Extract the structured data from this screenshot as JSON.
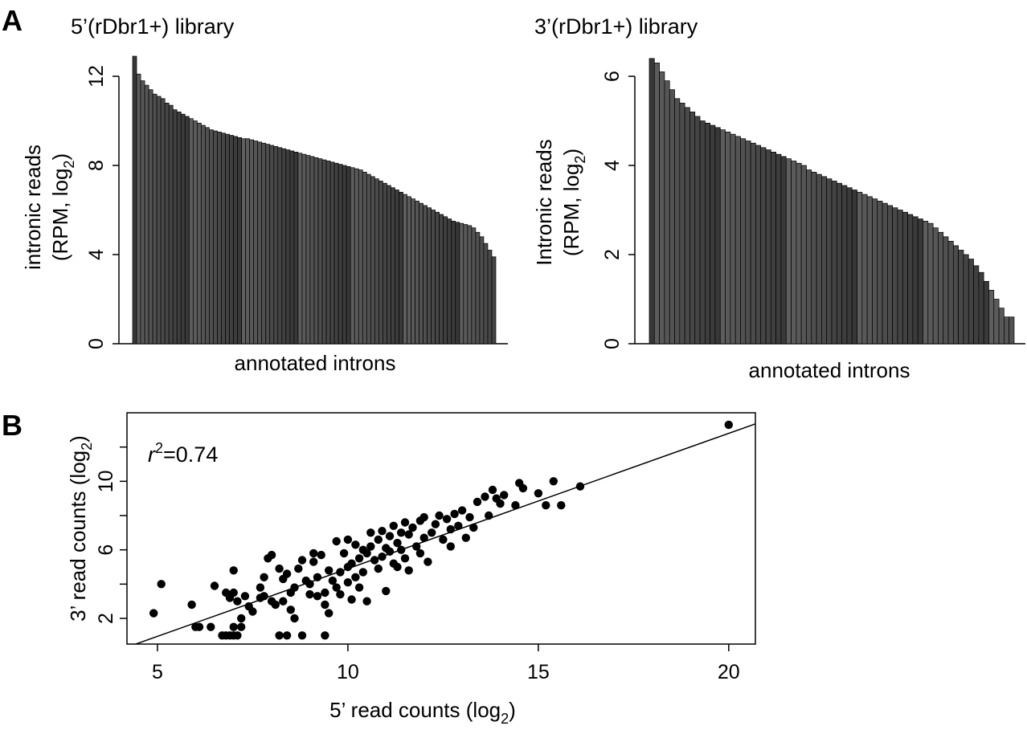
{
  "figure": {
    "panel_a_letter": "A",
    "panel_b_letter": "B"
  },
  "chart_data": [
    {
      "type": "bar",
      "panel": "A",
      "title": "5’(rDbr1+) library",
      "xlabel": "annotated introns",
      "ylabel_line1": "intronic reads",
      "ylabel_line2_prefix": "(RPM, log",
      "ylabel_line2_sub": "2",
      "ylabel_line2_suffix": ")",
      "ylim": [
        0,
        12
      ],
      "yticks": [
        0,
        4,
        8,
        12
      ],
      "ytick_labels": [
        "0",
        "4",
        "8",
        "12"
      ],
      "sorted_descending": true,
      "values": [
        12.9,
        12.1,
        11.8,
        11.6,
        11.4,
        11.2,
        11.1,
        11.0,
        10.8,
        10.7,
        10.5,
        10.4,
        10.3,
        10.2,
        10.1,
        10.0,
        9.9,
        9.8,
        9.7,
        9.6,
        9.55,
        9.5,
        9.45,
        9.4,
        9.35,
        9.3,
        9.25,
        9.2,
        9.2,
        9.15,
        9.1,
        9.05,
        9.0,
        8.95,
        8.9,
        8.85,
        8.8,
        8.75,
        8.7,
        8.65,
        8.6,
        8.55,
        8.5,
        8.45,
        8.4,
        8.35,
        8.3,
        8.25,
        8.2,
        8.15,
        8.1,
        8.05,
        8.0,
        7.95,
        7.9,
        7.85,
        7.8,
        7.7,
        7.6,
        7.5,
        7.4,
        7.3,
        7.2,
        7.1,
        7.0,
        6.9,
        6.8,
        6.7,
        6.6,
        6.5,
        6.4,
        6.3,
        6.2,
        6.1,
        6.0,
        5.9,
        5.8,
        5.7,
        5.6,
        5.5,
        5.45,
        5.4,
        5.35,
        5.3,
        5.2,
        5.0,
        4.8,
        4.5,
        4.2,
        3.9
      ]
    },
    {
      "type": "bar",
      "panel": "A",
      "title": "3’(rDbr1+) library",
      "xlabel": "annotated introns",
      "ylabel_line1": "Intronic reads",
      "ylabel_line2_prefix": "(RPM, log",
      "ylabel_line2_sub": "2",
      "ylabel_line2_suffix": ")",
      "ylim": [
        0,
        6
      ],
      "yticks": [
        0,
        2,
        4,
        6
      ],
      "ytick_labels": [
        "0",
        "2",
        "4",
        "6"
      ],
      "sorted_descending": true,
      "values": [
        6.4,
        6.3,
        6.1,
        5.9,
        5.7,
        5.5,
        5.4,
        5.3,
        5.2,
        5.1,
        5.0,
        4.95,
        4.9,
        4.85,
        4.8,
        4.75,
        4.7,
        4.65,
        4.6,
        4.55,
        4.5,
        4.45,
        4.4,
        4.35,
        4.3,
        4.25,
        4.2,
        4.15,
        4.1,
        4.05,
        4.0,
        3.9,
        3.85,
        3.8,
        3.75,
        3.7,
        3.65,
        3.6,
        3.55,
        3.5,
        3.45,
        3.4,
        3.35,
        3.3,
        3.25,
        3.2,
        3.15,
        3.1,
        3.05,
        3.0,
        2.95,
        2.9,
        2.85,
        2.8,
        2.75,
        2.7,
        2.6,
        2.5,
        2.4,
        2.3,
        2.2,
        2.1,
        2.0,
        1.9,
        1.75,
        1.6,
        1.4,
        1.2,
        1.0,
        0.8,
        0.6,
        0.6
      ]
    },
    {
      "type": "scatter",
      "panel": "B",
      "xlabel_prefix": "5’ read counts (log",
      "xlabel_sub": "2",
      "xlabel_suffix": ")",
      "ylabel_prefix": "3’ read counts (log",
      "ylabel_sub": "2",
      "ylabel_suffix": ")",
      "annotation_var": "r",
      "annotation_sup": "2",
      "annotation_value": "=0.74",
      "xlim": [
        4.2,
        20.7
      ],
      "ylim": [
        0.5,
        14.0
      ],
      "xticks": [
        5,
        10,
        15,
        20
      ],
      "xtick_labels": [
        "5",
        "10",
        "15",
        "20"
      ],
      "yticks": [
        2,
        4,
        6,
        8,
        10,
        12
      ],
      "ytick_labels": [
        "2",
        "",
        "6",
        "",
        "10",
        ""
      ],
      "fit_line": {
        "slope": 0.79,
        "intercept": -3.0
      },
      "points": [
        [
          4.9,
          2.3
        ],
        [
          5.1,
          4.0
        ],
        [
          5.9,
          2.8
        ],
        [
          6.0,
          1.5
        ],
        [
          6.1,
          1.5
        ],
        [
          6.4,
          1.5
        ],
        [
          6.5,
          3.9
        ],
        [
          6.7,
          1.0
        ],
        [
          6.8,
          1.0
        ],
        [
          6.8,
          3.5
        ],
        [
          6.9,
          3.2
        ],
        [
          6.9,
          1.0
        ],
        [
          7.0,
          1.0
        ],
        [
          7.0,
          1.5
        ],
        [
          7.0,
          3.5
        ],
        [
          7.0,
          4.8
        ],
        [
          7.1,
          1.0
        ],
        [
          7.1,
          3.0
        ],
        [
          7.2,
          1.5
        ],
        [
          7.2,
          2.0
        ],
        [
          7.3,
          3.3
        ],
        [
          7.4,
          2.7
        ],
        [
          7.5,
          2.4
        ],
        [
          7.7,
          3.2
        ],
        [
          7.7,
          3.8
        ],
        [
          7.8,
          3.3
        ],
        [
          7.8,
          4.4
        ],
        [
          7.9,
          5.5
        ],
        [
          8.0,
          5.7
        ],
        [
          8.0,
          3.0
        ],
        [
          8.1,
          2.8
        ],
        [
          8.2,
          4.9
        ],
        [
          8.2,
          1.0
        ],
        [
          8.3,
          3.0
        ],
        [
          8.3,
          4.3
        ],
        [
          8.4,
          1.0
        ],
        [
          8.4,
          4.6
        ],
        [
          8.5,
          2.5
        ],
        [
          8.5,
          3.5
        ],
        [
          8.6,
          2.0
        ],
        [
          8.6,
          3.8
        ],
        [
          8.7,
          4.9
        ],
        [
          8.8,
          1.0
        ],
        [
          8.8,
          5.4
        ],
        [
          8.9,
          4.2
        ],
        [
          9.0,
          3.4
        ],
        [
          9.0,
          4.0
        ],
        [
          9.1,
          5.3
        ],
        [
          9.1,
          5.8
        ],
        [
          9.2,
          3.3
        ],
        [
          9.2,
          4.4
        ],
        [
          9.3,
          5.7
        ],
        [
          9.4,
          2.8
        ],
        [
          9.4,
          1.0
        ],
        [
          9.4,
          3.5
        ],
        [
          9.5,
          2.3
        ],
        [
          9.5,
          4.8
        ],
        [
          9.6,
          4.2
        ],
        [
          9.7,
          3.8
        ],
        [
          9.7,
          6.5
        ],
        [
          9.8,
          4.7
        ],
        [
          9.8,
          3.4
        ],
        [
          9.9,
          5.8
        ],
        [
          10.0,
          5.0
        ],
        [
          10.0,
          4.1
        ],
        [
          10.0,
          6.6
        ],
        [
          10.1,
          3.1
        ],
        [
          10.1,
          5.2
        ],
        [
          10.2,
          4.4
        ],
        [
          10.2,
          6.3
        ],
        [
          10.3,
          3.8
        ],
        [
          10.3,
          5.5
        ],
        [
          10.4,
          6.0
        ],
        [
          10.4,
          4.7
        ],
        [
          10.5,
          3.0
        ],
        [
          10.5,
          5.8
        ],
        [
          10.6,
          6.2
        ],
        [
          10.6,
          7.0
        ],
        [
          10.7,
          5.4
        ],
        [
          10.8,
          6.6
        ],
        [
          10.8,
          4.9
        ],
        [
          10.9,
          7.1
        ],
        [
          10.9,
          5.6
        ],
        [
          11.0,
          6.1
        ],
        [
          11.0,
          3.6
        ],
        [
          11.1,
          5.9
        ],
        [
          11.1,
          6.8
        ],
        [
          11.2,
          5.2
        ],
        [
          11.2,
          7.4
        ],
        [
          11.3,
          6.4
        ],
        [
          11.3,
          5.0
        ],
        [
          11.4,
          7.0
        ],
        [
          11.4,
          6.0
        ],
        [
          11.5,
          5.5
        ],
        [
          11.5,
          7.6
        ],
        [
          11.6,
          6.9
        ],
        [
          11.6,
          4.8
        ],
        [
          11.7,
          7.3
        ],
        [
          11.8,
          6.2
        ],
        [
          11.9,
          7.7
        ],
        [
          11.9,
          5.8
        ],
        [
          12.0,
          6.7
        ],
        [
          12.0,
          7.9
        ],
        [
          12.1,
          5.3
        ],
        [
          12.2,
          7.0
        ],
        [
          12.3,
          7.5
        ],
        [
          12.4,
          8.0
        ],
        [
          12.5,
          6.6
        ],
        [
          12.6,
          7.8
        ],
        [
          12.7,
          6.2
        ],
        [
          12.7,
          7.2
        ],
        [
          12.8,
          8.1
        ],
        [
          12.9,
          7.4
        ],
        [
          13.0,
          8.3
        ],
        [
          13.1,
          6.7
        ],
        [
          13.2,
          7.9
        ],
        [
          13.3,
          7.3
        ],
        [
          13.4,
          8.8
        ],
        [
          13.6,
          9.1
        ],
        [
          13.7,
          8.0
        ],
        [
          13.8,
          9.5
        ],
        [
          13.9,
          9.0
        ],
        [
          14.0,
          8.7
        ],
        [
          14.1,
          9.2
        ],
        [
          14.4,
          8.6
        ],
        [
          14.5,
          9.9
        ],
        [
          14.6,
          9.6
        ],
        [
          15.0,
          9.3
        ],
        [
          15.2,
          8.6
        ],
        [
          15.4,
          10.0
        ],
        [
          15.6,
          8.6
        ],
        [
          16.1,
          9.7
        ],
        [
          20.0,
          13.3
        ]
      ]
    }
  ]
}
